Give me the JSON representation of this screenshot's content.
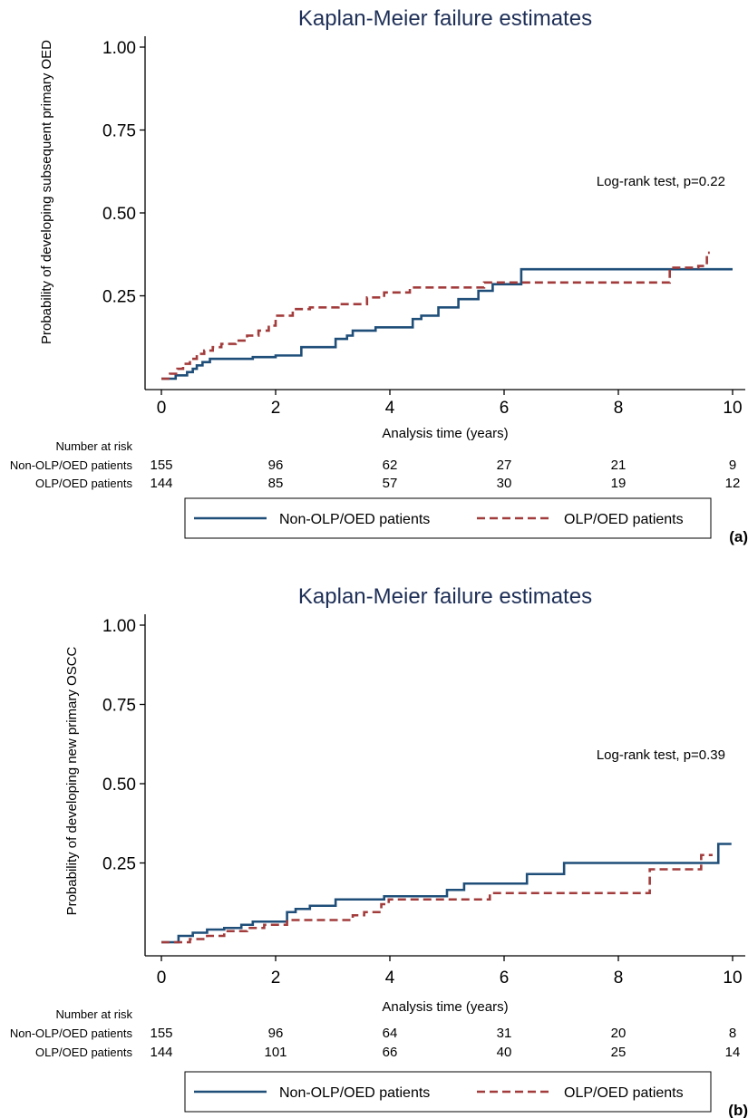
{
  "chart_data": [
    {
      "type": "line",
      "title": "Kaplan-Meier failure estimates",
      "xlabel": "Analysis time (years)",
      "ylabel": "Probability of developing subsequent primary OED",
      "xlim": [
        0,
        10
      ],
      "ylim": [
        -0.02,
        1.04
      ],
      "x_ticks": [
        "0",
        "2",
        "4",
        "6",
        "8",
        "10"
      ],
      "y_ticks": [
        "0.25",
        "0.50",
        "0.75",
        "1.00"
      ],
      "annotation": "Log-rank test, p=0.22",
      "panel_label": "(a)",
      "legend_position": "bottom",
      "series": [
        {
          "name": "Non-OLP/OED patients",
          "color": "#1f4e79",
          "style": "solid",
          "x": [
            0,
            0.25,
            0.45,
            0.55,
            0.62,
            0.72,
            0.85,
            1.6,
            2.0,
            2.45,
            3.05,
            3.25,
            3.35,
            3.75,
            4.4,
            4.55,
            4.85,
            5.2,
            5.55,
            5.8,
            6.3,
            10.0
          ],
          "y": [
            0,
            0.01,
            0.02,
            0.03,
            0.04,
            0.05,
            0.06,
            0.065,
            0.07,
            0.095,
            0.12,
            0.13,
            0.145,
            0.155,
            0.18,
            0.19,
            0.215,
            0.24,
            0.265,
            0.285,
            0.33,
            0.33
          ]
        },
        {
          "name": "OLP/OED patients",
          "color": "#a23b3b",
          "style": "dashed",
          "x": [
            0,
            0.15,
            0.28,
            0.38,
            0.5,
            0.62,
            0.75,
            0.9,
            1.05,
            1.3,
            1.5,
            1.7,
            1.88,
            2.0,
            2.3,
            2.6,
            3.1,
            3.6,
            3.9,
            4.35,
            5.65,
            8.9,
            9.4,
            9.55,
            9.6
          ],
          "y": [
            0,
            0.015,
            0.03,
            0.045,
            0.06,
            0.075,
            0.085,
            0.095,
            0.105,
            0.115,
            0.13,
            0.145,
            0.16,
            0.19,
            0.21,
            0.215,
            0.225,
            0.245,
            0.26,
            0.275,
            0.29,
            0.335,
            0.34,
            0.38,
            0.38
          ]
        }
      ],
      "risk_table": {
        "header": "Number at risk",
        "rows": [
          {
            "label": "Non-OLP/OED patients",
            "values": [
              "155",
              "96",
              "62",
              "27",
              "21",
              "9"
            ]
          },
          {
            "label": "OLP/OED patients",
            "values": [
              "144",
              "85",
              "57",
              "30",
              "19",
              "12"
            ]
          }
        ]
      }
    },
    {
      "type": "line",
      "title": "Kaplan-Meier failure estimates",
      "xlabel": "Analysis time (years)",
      "ylabel": "Probability of developing new primary OSCC",
      "xlim": [
        0,
        10
      ],
      "ylim": [
        -0.02,
        1.04
      ],
      "x_ticks": [
        "0",
        "2",
        "4",
        "6",
        "8",
        "10"
      ],
      "y_ticks": [
        "0.25",
        "0.50",
        "0.75",
        "1.00"
      ],
      "annotation": "Log-rank test, p=0.39",
      "panel_label": "(b)",
      "legend_position": "bottom",
      "series": [
        {
          "name": "Non-OLP/OED patients",
          "color": "#1f4e79",
          "style": "solid",
          "x": [
            0,
            0.3,
            0.55,
            0.8,
            1.1,
            1.4,
            1.6,
            2.2,
            2.35,
            2.6,
            3.05,
            3.9,
            5.0,
            5.3,
            6.4,
            7.05,
            9.75,
            9.98
          ],
          "y": [
            0,
            0.02,
            0.03,
            0.04,
            0.045,
            0.055,
            0.065,
            0.095,
            0.105,
            0.115,
            0.135,
            0.145,
            0.165,
            0.185,
            0.215,
            0.25,
            0.31,
            0.31
          ]
        },
        {
          "name": "OLP/OED patients",
          "color": "#a23b3b",
          "style": "dashed",
          "x": [
            0,
            0.5,
            0.8,
            1.1,
            1.5,
            1.8,
            2.2,
            2.7,
            3.35,
            3.55,
            3.85,
            3.98,
            5.75,
            8.55,
            9.45,
            9.65
          ],
          "y": [
            0,
            0.01,
            0.02,
            0.035,
            0.045,
            0.055,
            0.07,
            0.07,
            0.085,
            0.095,
            0.12,
            0.135,
            0.155,
            0.23,
            0.275,
            0.275
          ]
        }
      ],
      "risk_table": {
        "header": "Number at risk",
        "rows": [
          {
            "label": "Non-OLP/OED patients",
            "values": [
              "155",
              "96",
              "64",
              "31",
              "20",
              "8"
            ]
          },
          {
            "label": "OLP/OED patients",
            "values": [
              "144",
              "101",
              "66",
              "40",
              "25",
              "14"
            ]
          }
        ]
      }
    }
  ]
}
